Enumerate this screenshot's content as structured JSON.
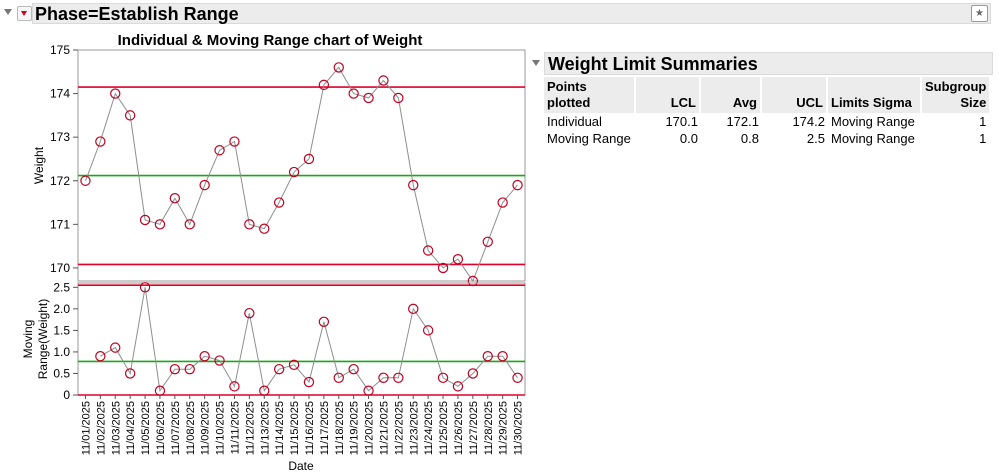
{
  "phase": {
    "title": "Phase=Establish Range"
  },
  "chart": {
    "title": "Individual & Moving Range chart of Weight"
  },
  "colors": {
    "limit": "#e0002b",
    "center": "#19a719",
    "point": "#c00020",
    "line": "#8e8e8e"
  },
  "chart_data": [
    {
      "type": "line",
      "name": "Individual",
      "ylabel": "Weight",
      "ylim": [
        169.7,
        175
      ],
      "yticks": [
        170,
        171,
        172,
        173,
        174,
        175
      ],
      "x": [
        "11/01/2025",
        "11/02/2025",
        "11/03/2025",
        "11/04/2025",
        "11/05/2025",
        "11/06/2025",
        "11/07/2025",
        "11/08/2025",
        "11/09/2025",
        "11/10/2025",
        "11/11/2025",
        "11/12/2025",
        "11/13/2025",
        "11/14/2025",
        "11/15/2025",
        "11/16/2025",
        "11/17/2025",
        "11/18/2025",
        "11/19/2025",
        "11/20/2025",
        "11/21/2025",
        "11/22/2025",
        "11/23/2025",
        "11/24/2025",
        "11/25/2025",
        "11/26/2025",
        "11/27/2025",
        "11/28/2025",
        "11/29/2025",
        "11/30/2025"
      ],
      "values": [
        172.0,
        172.9,
        174.0,
        173.5,
        171.1,
        171.0,
        171.6,
        171.0,
        171.9,
        172.7,
        172.9,
        171.0,
        170.9,
        171.5,
        172.2,
        172.5,
        174.2,
        174.6,
        174.0,
        173.9,
        174.3,
        173.9,
        171.9,
        170.4,
        170.0,
        170.2,
        169.7,
        170.6,
        171.5,
        171.9
      ],
      "ucl": 174.15,
      "center": 172.12,
      "lcl": 170.08
    },
    {
      "type": "line",
      "name": "Moving Range",
      "ylabel": "Moving Range(Weight)",
      "ylim": [
        0,
        2.6
      ],
      "yticks": [
        0,
        0.5,
        1.0,
        1.5,
        2.0,
        2.5
      ],
      "xlabel": "Date",
      "x": [
        "11/01/2025",
        "11/02/2025",
        "11/03/2025",
        "11/04/2025",
        "11/05/2025",
        "11/06/2025",
        "11/07/2025",
        "11/08/2025",
        "11/09/2025",
        "11/10/2025",
        "11/11/2025",
        "11/12/2025",
        "11/13/2025",
        "11/14/2025",
        "11/15/2025",
        "11/16/2025",
        "11/17/2025",
        "11/18/2025",
        "11/19/2025",
        "11/20/2025",
        "11/21/2025",
        "11/22/2025",
        "11/23/2025",
        "11/24/2025",
        "11/25/2025",
        "11/26/2025",
        "11/27/2025",
        "11/28/2025",
        "11/29/2025",
        "11/30/2025"
      ],
      "values": [
        null,
        0.9,
        1.1,
        0.5,
        2.5,
        0.1,
        0.6,
        0.6,
        0.9,
        0.8,
        0.2,
        1.9,
        0.1,
        0.6,
        0.7,
        0.3,
        1.7,
        0.4,
        0.6,
        0.1,
        0.4,
        0.4,
        2.0,
        1.5,
        0.4,
        0.2,
        0.5,
        0.9,
        0.9,
        0.4
      ],
      "ucl": 2.55,
      "center": 0.78,
      "lcl": 0.0
    }
  ],
  "summary": {
    "title": "Weight Limit Summaries",
    "headers": {
      "points_line1": "Points",
      "points_line2": "plotted",
      "lcl": "LCL",
      "avg": "Avg",
      "ucl": "UCL",
      "sigma": "Limits Sigma",
      "size_line1": "Subgroup",
      "size_line2": "Size"
    },
    "rows": [
      {
        "points": "Individual",
        "lcl": "170.1",
        "avg": "172.1",
        "ucl": "174.2",
        "sigma": "Moving Range",
        "size": "1"
      },
      {
        "points": "Moving Range",
        "lcl": "0.0",
        "avg": "0.8",
        "ucl": "2.5",
        "sigma": "Moving Range",
        "size": "1"
      }
    ]
  }
}
